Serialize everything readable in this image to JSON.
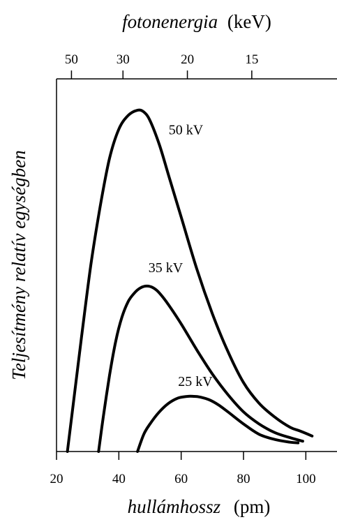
{
  "chart_data": {
    "type": "line",
    "xlabel": {
      "italic": "hullámhossz",
      "rest": "(pm)"
    },
    "ylabel": "Teljesítmény relatív egységben",
    "top_axis_label": {
      "italic": "fotonenergia",
      "rest": "(keV)"
    },
    "xlim": [
      20,
      110
    ],
    "ylim": [
      0,
      1
    ],
    "x_ticks": [
      20,
      40,
      60,
      80,
      100
    ],
    "x_tick_labels": [
      "20",
      "40",
      "60",
      "80",
      "100"
    ],
    "top_ticks": [
      50,
      30,
      20,
      15
    ],
    "top_tick_labels": [
      "50",
      "30",
      "20",
      "15"
    ],
    "series": [
      {
        "name": "50 kV",
        "x": [
          23.5,
          25,
          28,
          31,
          34,
          37,
          40,
          43,
          46,
          48,
          50,
          53,
          56,
          60,
          65,
          70,
          75,
          80,
          85,
          90,
          95,
          98,
          102
        ],
        "y": [
          0.0,
          0.11,
          0.33,
          0.54,
          0.71,
          0.85,
          0.935,
          0.975,
          0.99,
          0.985,
          0.96,
          0.89,
          0.8,
          0.68,
          0.53,
          0.4,
          0.29,
          0.2,
          0.14,
          0.1,
          0.07,
          0.06,
          0.045
        ]
      },
      {
        "name": "35 kV",
        "x": [
          33.5,
          35,
          37,
          39,
          41,
          43,
          45,
          47,
          49,
          51,
          53,
          56,
          60,
          65,
          70,
          75,
          80,
          85,
          90,
          95,
          99
        ],
        "y": [
          0.0,
          0.1,
          0.22,
          0.32,
          0.39,
          0.435,
          0.46,
          0.475,
          0.48,
          0.475,
          0.46,
          0.425,
          0.37,
          0.295,
          0.225,
          0.165,
          0.115,
          0.08,
          0.055,
          0.04,
          0.03
        ]
      },
      {
        "name": "25 kV",
        "x": [
          46,
          48,
          50,
          53,
          56,
          59,
          62,
          64,
          66,
          69,
          72,
          75,
          80,
          85,
          90,
          95,
          97.5
        ],
        "y": [
          0.0,
          0.05,
          0.08,
          0.115,
          0.14,
          0.155,
          0.16,
          0.16,
          0.158,
          0.15,
          0.135,
          0.115,
          0.08,
          0.05,
          0.035,
          0.027,
          0.025
        ]
      }
    ],
    "annotations": [
      {
        "text": "50 kV",
        "series": 0,
        "x": 56,
        "y": 0.92
      },
      {
        "text": "35 kV",
        "series": 1,
        "x": 49.5,
        "y": 0.52
      },
      {
        "text": "25 kV",
        "series": 2,
        "x": 59,
        "y": 0.19
      }
    ]
  }
}
